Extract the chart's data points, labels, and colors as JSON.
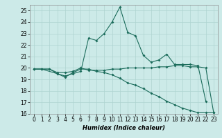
{
  "title": "",
  "xlabel": "Humidex (Indice chaleur)",
  "x_values": [
    0,
    1,
    2,
    3,
    4,
    5,
    6,
    7,
    8,
    9,
    10,
    11,
    12,
    13,
    14,
    15,
    16,
    17,
    18,
    19,
    20,
    21,
    22,
    23
  ],
  "line1": [
    19.9,
    19.9,
    19.9,
    19.6,
    19.6,
    19.7,
    20.0,
    19.8,
    19.8,
    19.8,
    19.9,
    19.9,
    20.0,
    20.0,
    20.0,
    20.0,
    20.1,
    20.1,
    20.2,
    20.2,
    20.1,
    20.1,
    20.0,
    16.1
  ],
  "line2": [
    19.9,
    19.9,
    19.9,
    19.5,
    19.3,
    19.5,
    19.7,
    22.6,
    22.4,
    23.0,
    24.0,
    25.3,
    23.1,
    22.8,
    21.1,
    20.5,
    20.7,
    21.2,
    20.3,
    20.3,
    20.3,
    20.2,
    17.1,
    null
  ],
  "line3": [
    19.9,
    19.9,
    null,
    19.5,
    19.2,
    19.6,
    19.9,
    19.9,
    19.7,
    19.6,
    19.4,
    19.1,
    18.7,
    18.5,
    18.2,
    17.8,
    17.5,
    17.1,
    16.8,
    16.5,
    16.3,
    16.1,
    16.1,
    16.1
  ],
  "line_color": "#1a6b5a",
  "bg_color": "#cceae8",
  "grid_color": "#aed4d1",
  "ylim": [
    16,
    25.5
  ],
  "yticks": [
    16,
    17,
    18,
    19,
    20,
    21,
    22,
    23,
    24,
    25
  ],
  "xlim": [
    -0.5,
    23.5
  ],
  "xticks": [
    0,
    1,
    2,
    3,
    4,
    5,
    6,
    7,
    8,
    9,
    10,
    11,
    12,
    13,
    14,
    15,
    16,
    17,
    18,
    19,
    20,
    21,
    22,
    23
  ]
}
